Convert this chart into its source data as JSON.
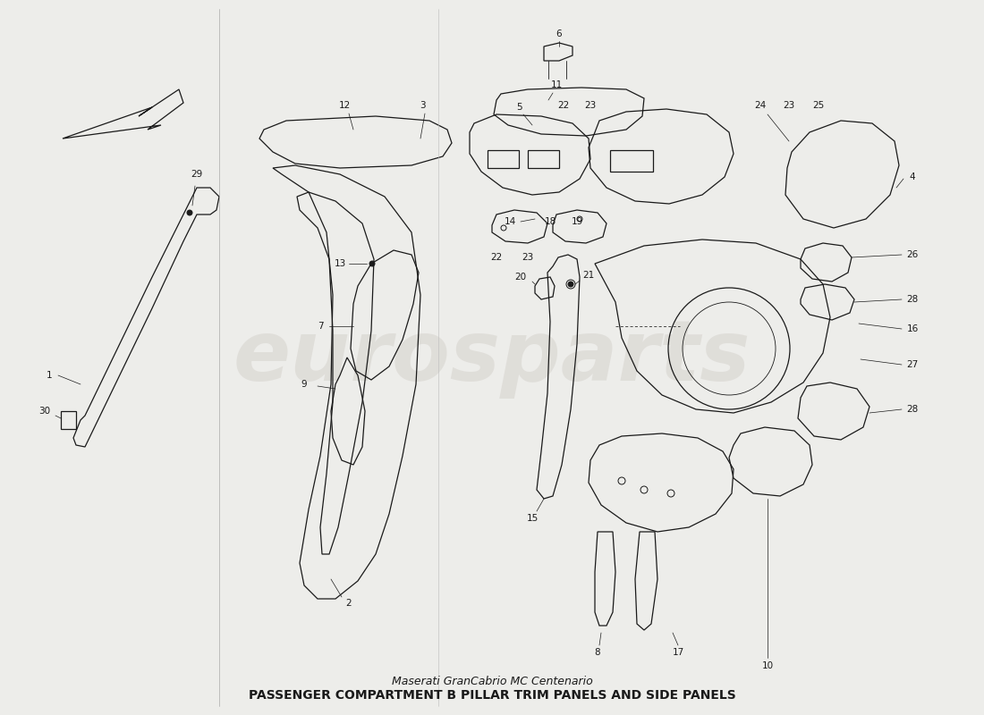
{
  "bg_color": "#ededea",
  "line_color": "#1a1a1a",
  "watermark_color": "#d0ccc6",
  "title": "PASSENGER COMPARTMENT B PILLAR TRIM PANELS AND SIDE PANELS",
  "subtitle": "Maserati GranCabrio MC Centenario",
  "watermark_text": "eurosparts",
  "fig_width": 11.0,
  "fig_height": 8.0
}
